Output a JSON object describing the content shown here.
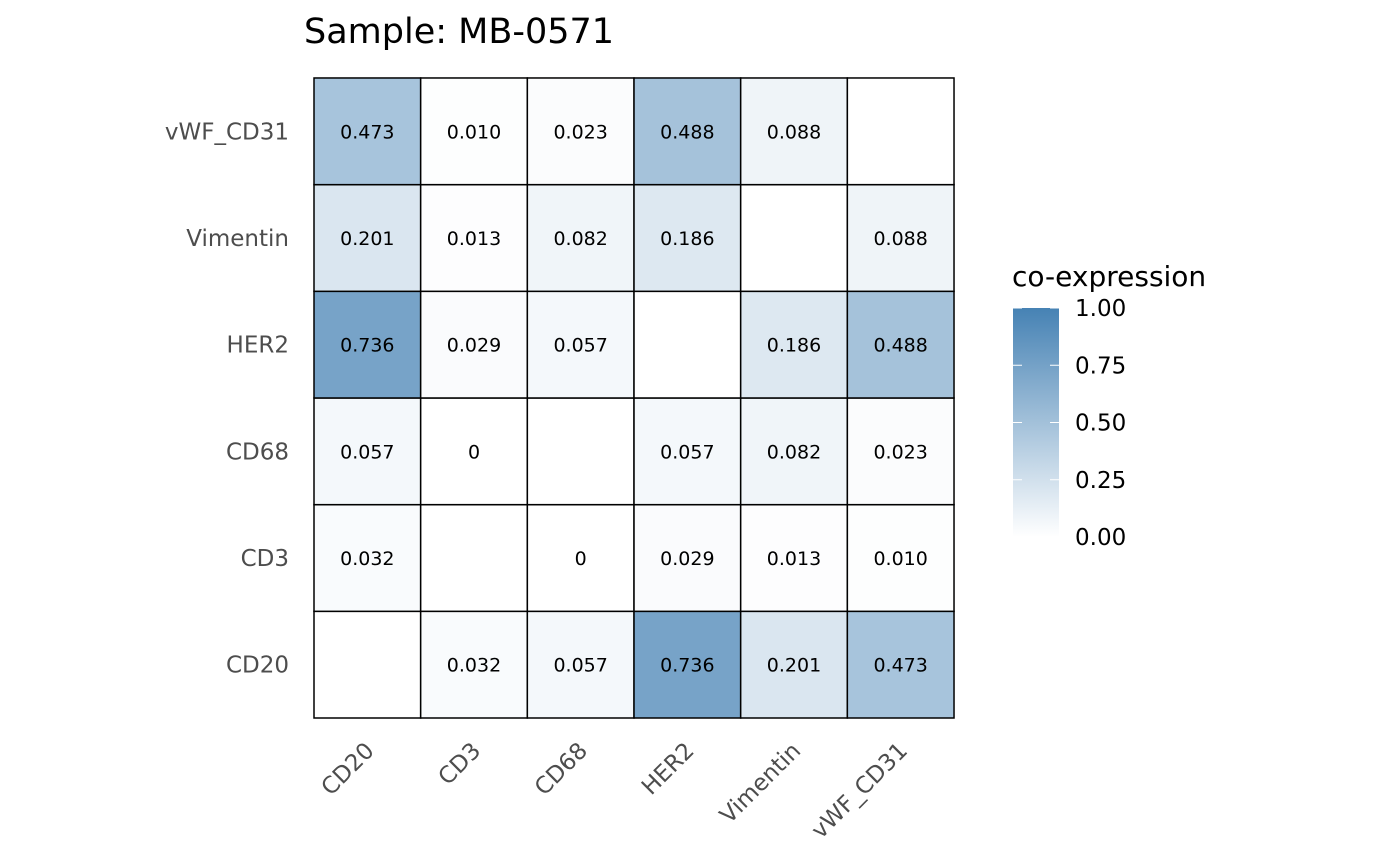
{
  "chart_data": {
    "type": "heatmap",
    "title": "Sample: MB-0571",
    "x_categories": [
      "CD20",
      "CD3",
      "CD68",
      "HER2",
      "Vimentin",
      "vWF_CD31"
    ],
    "y_categories": [
      "CD20",
      "CD3",
      "CD68",
      "HER2",
      "Vimentin",
      "vWF_CD31"
    ],
    "matrix": [
      [
        null,
        0.032,
        0.057,
        0.736,
        0.201,
        0.473
      ],
      [
        0.032,
        null,
        0,
        0.029,
        0.013,
        0.01
      ],
      [
        0.057,
        0,
        null,
        0.057,
        0.082,
        0.023
      ],
      [
        0.736,
        0.029,
        0.057,
        null,
        0.186,
        0.488
      ],
      [
        0.201,
        0.013,
        0.082,
        0.186,
        null,
        0.088
      ],
      [
        0.473,
        0.01,
        0.023,
        0.488,
        0.088,
        null
      ]
    ],
    "cell_labels": [
      [
        "",
        "0.032",
        "0.057",
        "0.736",
        "0.201",
        "0.473"
      ],
      [
        "0.032",
        "",
        "0",
        "0.029",
        "0.013",
        "0.010"
      ],
      [
        "0.057",
        "0",
        "",
        "0.057",
        "0.082",
        "0.023"
      ],
      [
        "0.736",
        "0.029",
        "0.057",
        "",
        "0.186",
        "0.488"
      ],
      [
        "0.201",
        "0.013",
        "0.082",
        "0.186",
        "",
        "0.088"
      ],
      [
        "0.473",
        "0.010",
        "0.023",
        "0.488",
        "0.088",
        ""
      ]
    ],
    "legend": {
      "title": "co-expression",
      "ticks": [
        "1.00",
        "0.75",
        "0.50",
        "0.25",
        "0.00"
      ],
      "tick_values": [
        1.0,
        0.75,
        0.5,
        0.25,
        0.0
      ],
      "range": [
        0,
        1
      ],
      "low_color": "#ffffff",
      "high_color": "#4682b4",
      "placement": "right"
    },
    "xlabel": "",
    "ylabel": "",
    "grid": false
  }
}
